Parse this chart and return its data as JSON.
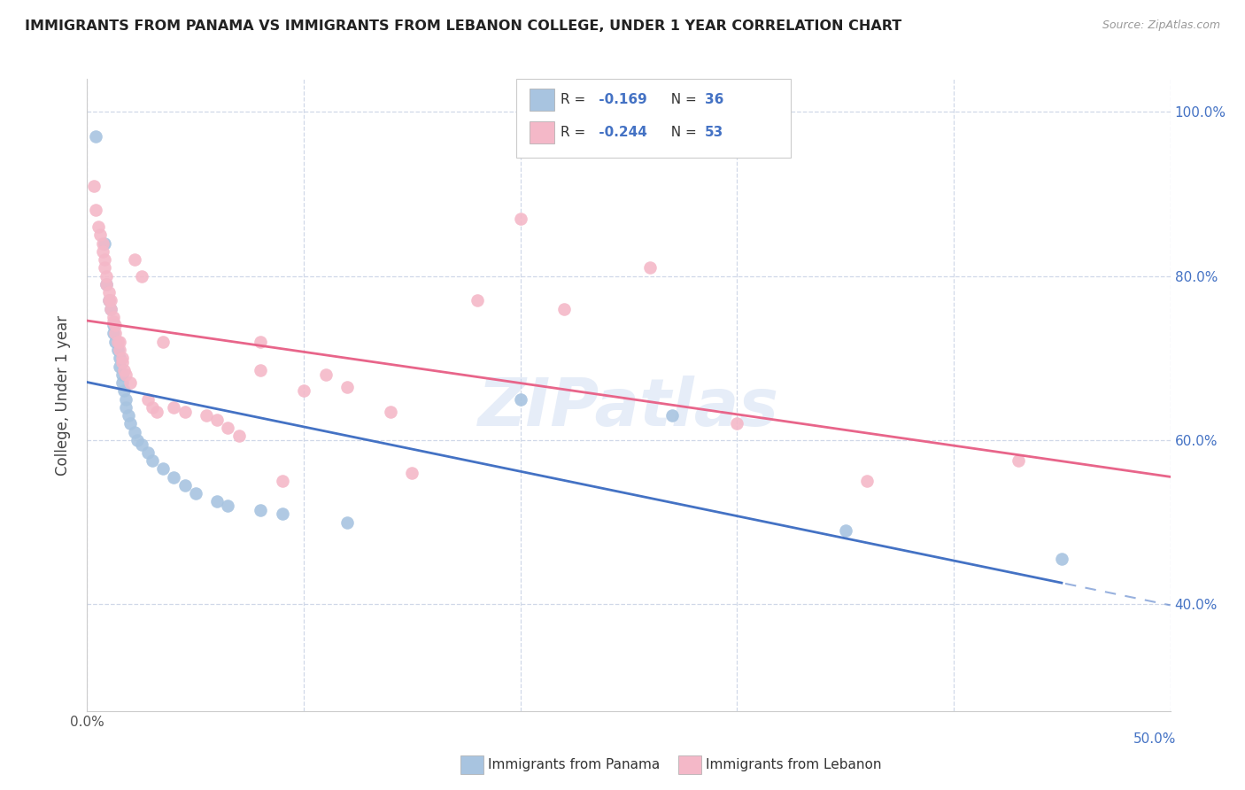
{
  "title": "IMMIGRANTS FROM PANAMA VS IMMIGRANTS FROM LEBANON COLLEGE, UNDER 1 YEAR CORRELATION CHART",
  "source": "Source: ZipAtlas.com",
  "ylabel": "College, Under 1 year",
  "panama_color": "#a8c4e0",
  "lebanon_color": "#f4b8c8",
  "panama_line_color": "#4472c4",
  "lebanon_line_color": "#e8658a",
  "panama_scatter": [
    [
      0.004,
      0.97
    ],
    [
      0.008,
      0.84
    ],
    [
      0.009,
      0.79
    ],
    [
      0.01,
      0.77
    ],
    [
      0.011,
      0.76
    ],
    [
      0.012,
      0.74
    ],
    [
      0.012,
      0.73
    ],
    [
      0.013,
      0.72
    ],
    [
      0.014,
      0.71
    ],
    [
      0.015,
      0.7
    ],
    [
      0.015,
      0.69
    ],
    [
      0.016,
      0.68
    ],
    [
      0.016,
      0.67
    ],
    [
      0.017,
      0.66
    ],
    [
      0.018,
      0.65
    ],
    [
      0.018,
      0.64
    ],
    [
      0.019,
      0.63
    ],
    [
      0.02,
      0.62
    ],
    [
      0.022,
      0.61
    ],
    [
      0.023,
      0.6
    ],
    [
      0.025,
      0.595
    ],
    [
      0.028,
      0.585
    ],
    [
      0.03,
      0.575
    ],
    [
      0.035,
      0.565
    ],
    [
      0.04,
      0.555
    ],
    [
      0.045,
      0.545
    ],
    [
      0.05,
      0.535
    ],
    [
      0.06,
      0.525
    ],
    [
      0.065,
      0.52
    ],
    [
      0.08,
      0.515
    ],
    [
      0.09,
      0.51
    ],
    [
      0.12,
      0.5
    ],
    [
      0.2,
      0.65
    ],
    [
      0.27,
      0.63
    ],
    [
      0.35,
      0.49
    ],
    [
      0.45,
      0.455
    ]
  ],
  "lebanon_scatter": [
    [
      0.003,
      0.91
    ],
    [
      0.004,
      0.88
    ],
    [
      0.005,
      0.86
    ],
    [
      0.006,
      0.85
    ],
    [
      0.007,
      0.84
    ],
    [
      0.007,
      0.83
    ],
    [
      0.008,
      0.82
    ],
    [
      0.008,
      0.81
    ],
    [
      0.009,
      0.8
    ],
    [
      0.009,
      0.79
    ],
    [
      0.01,
      0.78
    ],
    [
      0.01,
      0.77
    ],
    [
      0.011,
      0.77
    ],
    [
      0.011,
      0.76
    ],
    [
      0.012,
      0.75
    ],
    [
      0.012,
      0.745
    ],
    [
      0.013,
      0.74
    ],
    [
      0.013,
      0.73
    ],
    [
      0.014,
      0.72
    ],
    [
      0.015,
      0.72
    ],
    [
      0.015,
      0.71
    ],
    [
      0.016,
      0.7
    ],
    [
      0.016,
      0.695
    ],
    [
      0.017,
      0.685
    ],
    [
      0.018,
      0.68
    ],
    [
      0.02,
      0.67
    ],
    [
      0.022,
      0.82
    ],
    [
      0.025,
      0.8
    ],
    [
      0.028,
      0.65
    ],
    [
      0.03,
      0.64
    ],
    [
      0.032,
      0.635
    ],
    [
      0.035,
      0.72
    ],
    [
      0.04,
      0.64
    ],
    [
      0.045,
      0.635
    ],
    [
      0.055,
      0.63
    ],
    [
      0.06,
      0.625
    ],
    [
      0.065,
      0.615
    ],
    [
      0.07,
      0.605
    ],
    [
      0.08,
      0.72
    ],
    [
      0.08,
      0.685
    ],
    [
      0.09,
      0.55
    ],
    [
      0.1,
      0.66
    ],
    [
      0.11,
      0.68
    ],
    [
      0.12,
      0.665
    ],
    [
      0.14,
      0.635
    ],
    [
      0.15,
      0.56
    ],
    [
      0.18,
      0.77
    ],
    [
      0.2,
      0.87
    ],
    [
      0.22,
      0.76
    ],
    [
      0.26,
      0.81
    ],
    [
      0.3,
      0.62
    ],
    [
      0.36,
      0.55
    ],
    [
      0.43,
      0.575
    ]
  ],
  "xlim": [
    0.0,
    0.5
  ],
  "ylim": [
    0.27,
    1.04
  ],
  "xticks": [
    0.0,
    0.1,
    0.2,
    0.3,
    0.4,
    0.5
  ],
  "yticks": [
    0.4,
    0.6,
    0.8,
    1.0
  ],
  "background_color": "#ffffff",
  "grid_color": "#d0d8e8",
  "watermark": "ZIPatlas",
  "r_panama": -0.169,
  "n_panama": 36,
  "r_lebanon": -0.244,
  "n_lebanon": 53
}
